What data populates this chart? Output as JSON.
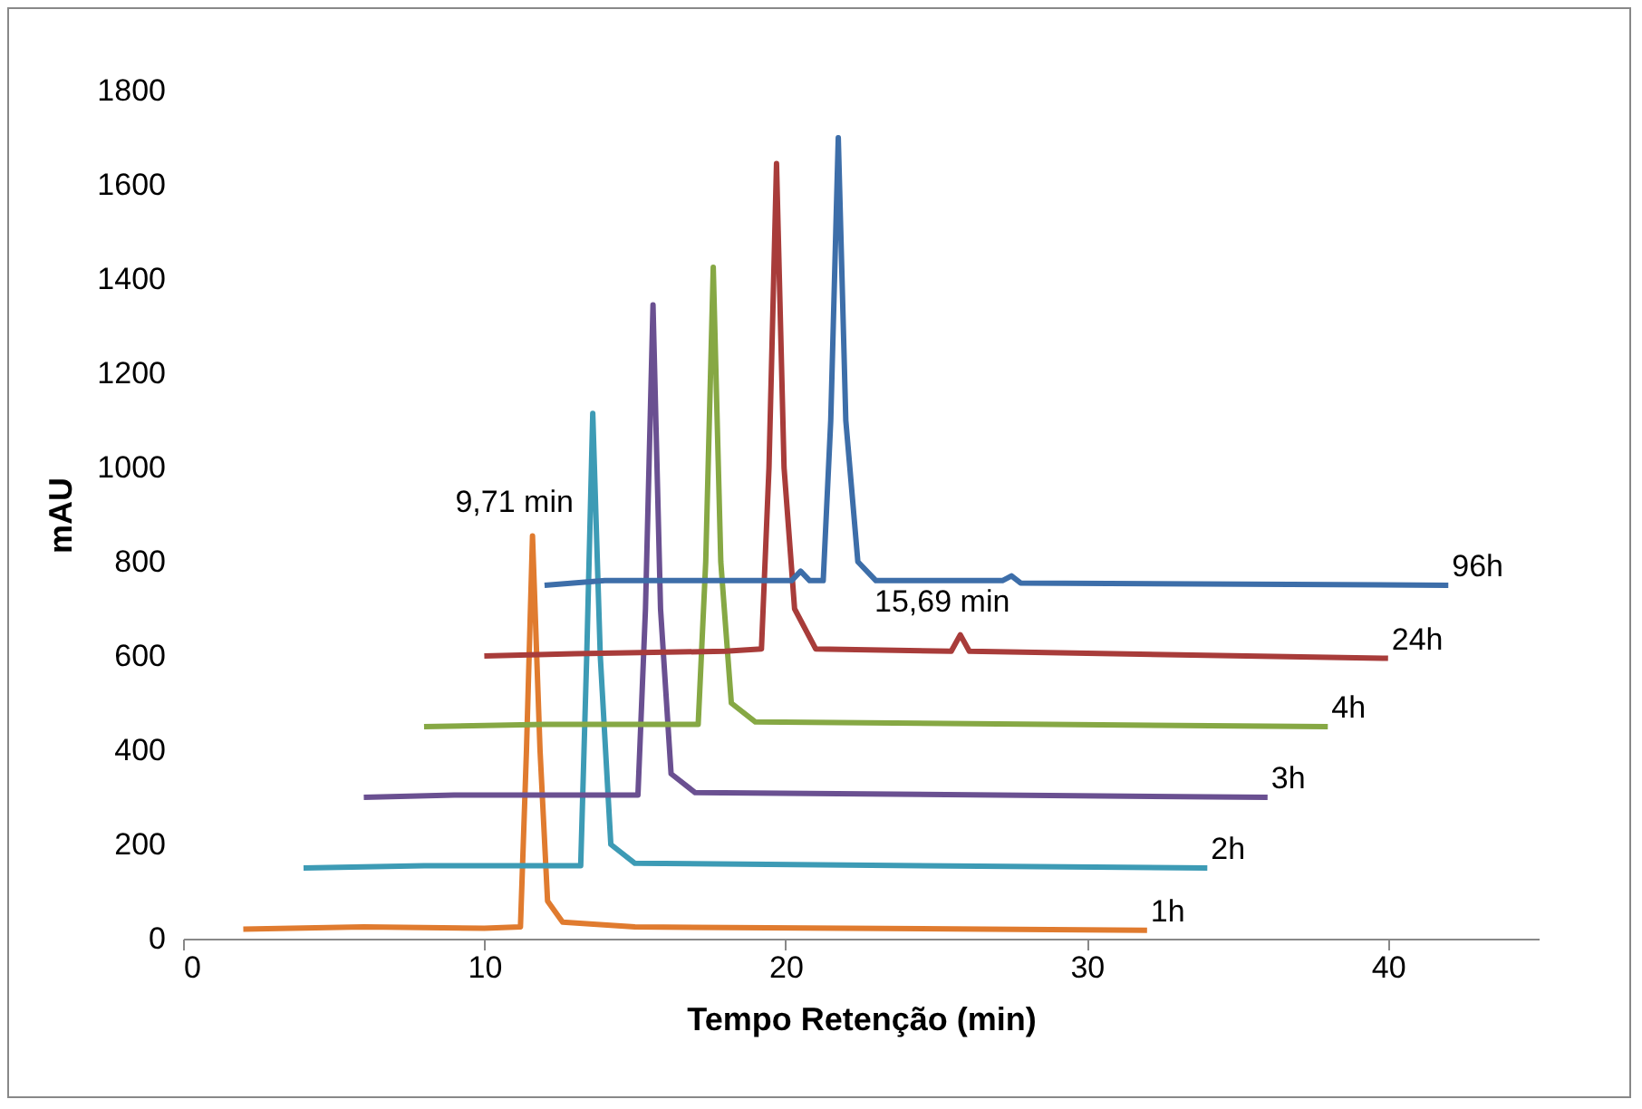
{
  "chart_data": {
    "type": "line",
    "xlabel": "Tempo Retenção (min)",
    "ylabel": "mAU",
    "xlim": [
      0,
      45
    ],
    "ylim": [
      0,
      1800
    ],
    "xticks": [
      0,
      10,
      20,
      30,
      40
    ],
    "yticks": [
      0,
      200,
      400,
      600,
      800,
      1000,
      1200,
      1400,
      1600,
      1800
    ],
    "grid": false,
    "legend": false,
    "marker": "none",
    "line_style": "solid",
    "series": [
      {
        "name": "1h",
        "color": "#e07b2f",
        "x": [
          2,
          6,
          10,
          11.2,
          11.4,
          11.6,
          11.85,
          12.1,
          12.6,
          15,
          32
        ],
        "values": [
          20,
          25,
          22,
          25,
          400,
          855,
          400,
          80,
          35,
          25,
          18
        ]
      },
      {
        "name": "2h",
        "color": "#3d9bb5",
        "x": [
          4,
          8,
          13.2,
          13.4,
          13.6,
          13.85,
          14.2,
          15,
          34
        ],
        "values": [
          150,
          155,
          155,
          600,
          1115,
          600,
          200,
          160,
          150
        ]
      },
      {
        "name": "3h",
        "color": "#6a5091",
        "x": [
          6,
          9,
          15.1,
          15.35,
          15.6,
          15.85,
          16.2,
          17,
          36
        ],
        "values": [
          300,
          305,
          305,
          700,
          1345,
          700,
          350,
          310,
          300
        ]
      },
      {
        "name": "4h",
        "color": "#86a844",
        "x": [
          8,
          12,
          17.1,
          17.35,
          17.6,
          17.85,
          18.2,
          19,
          38
        ],
        "values": [
          450,
          455,
          455,
          800,
          1425,
          800,
          500,
          460,
          450
        ]
      },
      {
        "name": "24h",
        "color": "#a83c3a",
        "x": [
          10,
          13,
          18,
          19.2,
          19.45,
          19.7,
          19.95,
          20.3,
          21,
          25.5,
          25.8,
          26.1,
          40
        ],
        "values": [
          600,
          605,
          610,
          615,
          1000,
          1645,
          1000,
          700,
          615,
          610,
          645,
          610,
          595
        ]
      },
      {
        "name": "96h",
        "color": "#3d6ea9",
        "x": [
          12,
          14,
          20.2,
          20.5,
          20.8,
          21.25,
          21.5,
          21.75,
          22,
          22.4,
          23,
          27.2,
          27.5,
          27.8,
          42
        ],
        "values": [
          750,
          760,
          760,
          780,
          760,
          760,
          1100,
          1700,
          1100,
          800,
          760,
          760,
          770,
          755,
          750
        ]
      }
    ],
    "annotations": [
      {
        "text": "9,71 min",
        "x": 11.6,
        "y": 855
      },
      {
        "text": "15,69 min",
        "x": 25.8,
        "y": 645
      }
    ]
  }
}
